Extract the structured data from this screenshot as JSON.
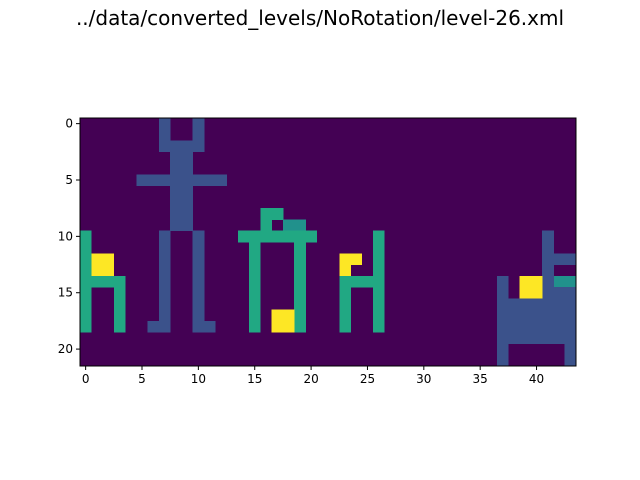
{
  "title": "../data/converted_levels/NoRotation/level-26.xml",
  "chart_data": {
    "type": "heatmap",
    "title": "../data/converted_levels/NoRotation/level-26.xml",
    "xlabel": "",
    "ylabel": "",
    "colormap": "viridis",
    "x_ticks": [
      0,
      5,
      10,
      15,
      20,
      25,
      30,
      35,
      40
    ],
    "y_ticks": [
      0,
      5,
      10,
      15,
      20
    ],
    "xlim": [
      -0.5,
      43.5
    ],
    "ylim": [
      21.5,
      -0.5
    ],
    "ncols": 44,
    "nrows": 22,
    "value_colors": {
      "0": "#440154",
      "1": "#3b528b",
      "2": "#21918c",
      "3": "#21a883",
      "4": "#fde725"
    },
    "cells": [
      [
        7,
        0,
        1
      ],
      [
        10,
        0,
        1
      ],
      [
        7,
        1,
        1
      ],
      [
        10,
        1,
        1
      ],
      [
        7,
        2,
        1
      ],
      [
        8,
        2,
        1
      ],
      [
        9,
        2,
        1
      ],
      [
        10,
        2,
        1
      ],
      [
        8,
        3,
        1
      ],
      [
        9,
        3,
        1
      ],
      [
        8,
        4,
        1
      ],
      [
        9,
        4,
        1
      ],
      [
        5,
        5,
        1
      ],
      [
        6,
        5,
        1
      ],
      [
        7,
        5,
        1
      ],
      [
        8,
        5,
        1
      ],
      [
        9,
        5,
        1
      ],
      [
        10,
        5,
        1
      ],
      [
        11,
        5,
        1
      ],
      [
        12,
        5,
        1
      ],
      [
        8,
        6,
        1
      ],
      [
        9,
        6,
        1
      ],
      [
        8,
        7,
        1
      ],
      [
        9,
        7,
        1
      ],
      [
        8,
        8,
        1
      ],
      [
        9,
        8,
        1
      ],
      [
        8,
        9,
        1
      ],
      [
        9,
        9,
        1
      ],
      [
        7,
        10,
        1
      ],
      [
        10,
        10,
        1
      ],
      [
        7,
        11,
        1
      ],
      [
        10,
        11,
        1
      ],
      [
        7,
        12,
        1
      ],
      [
        10,
        12,
        1
      ],
      [
        7,
        13,
        1
      ],
      [
        10,
        13,
        1
      ],
      [
        7,
        14,
        1
      ],
      [
        10,
        14,
        1
      ],
      [
        7,
        15,
        1
      ],
      [
        10,
        15,
        1
      ],
      [
        7,
        16,
        1
      ],
      [
        10,
        16,
        1
      ],
      [
        7,
        17,
        1
      ],
      [
        10,
        17,
        1
      ],
      [
        6,
        18,
        1
      ],
      [
        7,
        18,
        1
      ],
      [
        10,
        18,
        1
      ],
      [
        11,
        18,
        1
      ],
      [
        16,
        8,
        3
      ],
      [
        17,
        8,
        3
      ],
      [
        16,
        9,
        3
      ],
      [
        18,
        9,
        2
      ],
      [
        19,
        9,
        2
      ],
      [
        14,
        10,
        3
      ],
      [
        15,
        10,
        3
      ],
      [
        16,
        10,
        3
      ],
      [
        17,
        10,
        3
      ],
      [
        18,
        10,
        3
      ],
      [
        19,
        10,
        3
      ],
      [
        20,
        10,
        3
      ],
      [
        15,
        11,
        3
      ],
      [
        19,
        11,
        3
      ],
      [
        15,
        12,
        3
      ],
      [
        19,
        12,
        3
      ],
      [
        15,
        13,
        3
      ],
      [
        19,
        13,
        3
      ],
      [
        15,
        14,
        3
      ],
      [
        19,
        14,
        3
      ],
      [
        15,
        15,
        3
      ],
      [
        19,
        15,
        3
      ],
      [
        15,
        16,
        3
      ],
      [
        19,
        16,
        3
      ],
      [
        15,
        17,
        3
      ],
      [
        19,
        17,
        3
      ],
      [
        15,
        18,
        3
      ],
      [
        19,
        18,
        3
      ],
      [
        17,
        17,
        4
      ],
      [
        18,
        17,
        4
      ],
      [
        17,
        18,
        4
      ],
      [
        18,
        18,
        4
      ],
      [
        0,
        10,
        3
      ],
      [
        0,
        11,
        3
      ],
      [
        0,
        12,
        3
      ],
      [
        0,
        13,
        3
      ],
      [
        0,
        14,
        3
      ],
      [
        1,
        14,
        3
      ],
      [
        2,
        14,
        3
      ],
      [
        3,
        14,
        3
      ],
      [
        0,
        15,
        3
      ],
      [
        3,
        15,
        3
      ],
      [
        0,
        16,
        3
      ],
      [
        3,
        16,
        3
      ],
      [
        0,
        17,
        3
      ],
      [
        3,
        17,
        3
      ],
      [
        0,
        18,
        3
      ],
      [
        3,
        18,
        3
      ],
      [
        1,
        12,
        4
      ],
      [
        2,
        12,
        4
      ],
      [
        1,
        13,
        4
      ],
      [
        2,
        13,
        4
      ],
      [
        26,
        10,
        3
      ],
      [
        26,
        11,
        3
      ],
      [
        26,
        12,
        3
      ],
      [
        26,
        13,
        3
      ],
      [
        23,
        14,
        3
      ],
      [
        24,
        14,
        3
      ],
      [
        25,
        14,
        3
      ],
      [
        26,
        14,
        3
      ],
      [
        23,
        15,
        3
      ],
      [
        26,
        15,
        3
      ],
      [
        23,
        16,
        3
      ],
      [
        26,
        16,
        3
      ],
      [
        23,
        17,
        3
      ],
      [
        26,
        17,
        3
      ],
      [
        23,
        18,
        3
      ],
      [
        26,
        18,
        3
      ],
      [
        23,
        12,
        4
      ],
      [
        24,
        12,
        4
      ],
      [
        23,
        13,
        4
      ],
      [
        41,
        10,
        1
      ],
      [
        41,
        11,
        1
      ],
      [
        41,
        12,
        1
      ],
      [
        42,
        12,
        1
      ],
      [
        43,
        12,
        1
      ],
      [
        41,
        13,
        1
      ],
      [
        42,
        14,
        2
      ],
      [
        43,
        14,
        2
      ],
      [
        37,
        14,
        1
      ],
      [
        41,
        14,
        1
      ],
      [
        37,
        15,
        1
      ],
      [
        41,
        15,
        1
      ],
      [
        42,
        15,
        1
      ],
      [
        43,
        15,
        1
      ],
      [
        39,
        14,
        4
      ],
      [
        40,
        14,
        4
      ],
      [
        39,
        15,
        4
      ],
      [
        40,
        15,
        4
      ],
      [
        37,
        16,
        1
      ],
      [
        38,
        16,
        1
      ],
      [
        39,
        16,
        1
      ],
      [
        40,
        16,
        1
      ],
      [
        41,
        16,
        1
      ],
      [
        42,
        16,
        1
      ],
      [
        43,
        16,
        1
      ],
      [
        37,
        17,
        1
      ],
      [
        38,
        17,
        1
      ],
      [
        39,
        17,
        1
      ],
      [
        40,
        17,
        1
      ],
      [
        41,
        17,
        1
      ],
      [
        42,
        17,
        1
      ],
      [
        43,
        17,
        1
      ],
      [
        37,
        18,
        1
      ],
      [
        38,
        18,
        1
      ],
      [
        39,
        18,
        1
      ],
      [
        40,
        18,
        1
      ],
      [
        41,
        18,
        1
      ],
      [
        42,
        18,
        1
      ],
      [
        43,
        18,
        1
      ],
      [
        37,
        19,
        1
      ],
      [
        38,
        19,
        1
      ],
      [
        39,
        19,
        1
      ],
      [
        40,
        19,
        1
      ],
      [
        41,
        19,
        1
      ],
      [
        42,
        19,
        1
      ],
      [
        43,
        19,
        1
      ],
      [
        37,
        20,
        1
      ],
      [
        43,
        20,
        1
      ],
      [
        37,
        21,
        1
      ],
      [
        43,
        21,
        1
      ]
    ]
  }
}
